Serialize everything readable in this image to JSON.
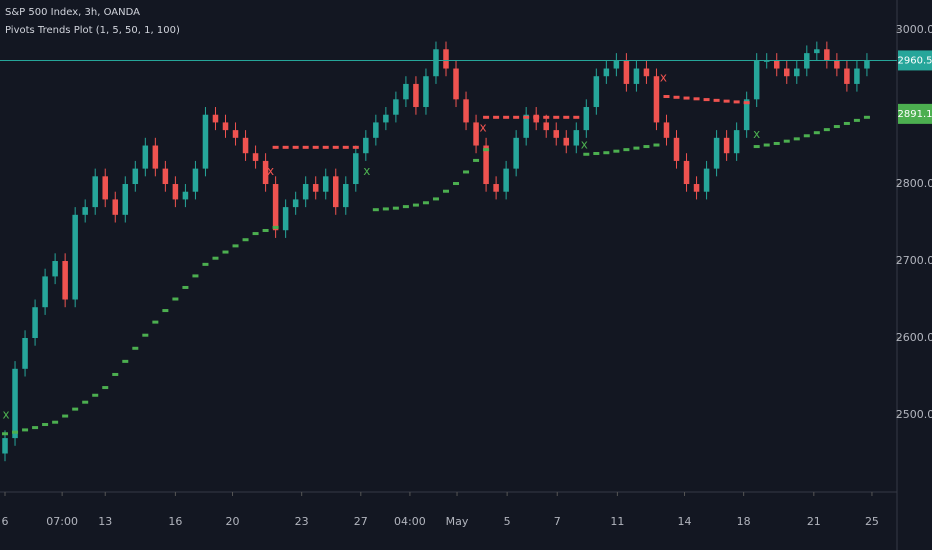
{
  "chart_data": {
    "type": "candlestick",
    "title": "S&P 500 Index, 3h, OANDA",
    "subtitle": "Pivots Trends Plot (1, 5, 50, 1, 100)",
    "up_color": "#26a69a",
    "down_color": "#ef5350",
    "open": [
      2450,
      2470,
      2560,
      2600,
      2640,
      2680,
      2700,
      2650,
      2760,
      2770,
      2810,
      2780,
      2760,
      2800,
      2820,
      2850,
      2820,
      2800,
      2780,
      2790,
      2820,
      2890,
      2880,
      2870,
      2860,
      2840,
      2830,
      2800,
      2740,
      2770,
      2780,
      2800,
      2790,
      2810,
      2770,
      2800,
      2840,
      2860,
      2880,
      2890,
      2910,
      2930,
      2900,
      2940,
      2975,
      2950,
      2910,
      2880,
      2850,
      2800,
      2790,
      2820,
      2860,
      2890,
      2880,
      2870,
      2860,
      2850,
      2870,
      2900,
      2940,
      2950,
      2960,
      2930,
      2950,
      2940,
      2880,
      2860,
      2830,
      2800,
      2790,
      2820,
      2860,
      2840,
      2870,
      2910,
      2960,
      2960,
      2950,
      2940,
      2950,
      2970,
      2975,
      2960,
      2950,
      2930,
      2950
    ],
    "high": [
      2480,
      2570,
      2610,
      2650,
      2690,
      2710,
      2710,
      2770,
      2780,
      2820,
      2820,
      2790,
      2810,
      2830,
      2860,
      2860,
      2830,
      2810,
      2800,
      2830,
      2900,
      2900,
      2890,
      2880,
      2870,
      2850,
      2840,
      2810,
      2780,
      2790,
      2810,
      2810,
      2820,
      2820,
      2810,
      2850,
      2870,
      2890,
      2900,
      2920,
      2940,
      2940,
      2950,
      2985,
      2985,
      2960,
      2920,
      2890,
      2860,
      2810,
      2830,
      2870,
      2900,
      2900,
      2890,
      2880,
      2870,
      2880,
      2910,
      2950,
      2960,
      2970,
      2970,
      2960,
      2960,
      2950,
      2890,
      2870,
      2840,
      2810,
      2830,
      2870,
      2870,
      2880,
      2920,
      2970,
      2970,
      2970,
      2960,
      2960,
      2980,
      2985,
      2985,
      2970,
      2960,
      2960,
      2970
    ],
    "low": [
      2440,
      2460,
      2550,
      2590,
      2630,
      2670,
      2640,
      2640,
      2750,
      2760,
      2770,
      2750,
      2750,
      2790,
      2810,
      2810,
      2790,
      2770,
      2770,
      2780,
      2810,
      2870,
      2860,
      2850,
      2830,
      2820,
      2790,
      2730,
      2730,
      2760,
      2770,
      2780,
      2780,
      2760,
      2760,
      2790,
      2830,
      2850,
      2870,
      2880,
      2900,
      2890,
      2890,
      2930,
      2940,
      2900,
      2870,
      2840,
      2790,
      2780,
      2780,
      2810,
      2850,
      2870,
      2860,
      2850,
      2840,
      2840,
      2860,
      2890,
      2930,
      2940,
      2920,
      2920,
      2930,
      2870,
      2850,
      2820,
      2790,
      2780,
      2780,
      2810,
      2830,
      2830,
      2860,
      2900,
      2950,
      2940,
      2930,
      2930,
      2940,
      2960,
      2950,
      2940,
      2920,
      2920,
      2940
    ],
    "close": [
      2470,
      2560,
      2600,
      2640,
      2680,
      2700,
      2650,
      2760,
      2770,
      2810,
      2780,
      2760,
      2800,
      2820,
      2850,
      2820,
      2800,
      2780,
      2790,
      2820,
      2890,
      2880,
      2870,
      2860,
      2840,
      2830,
      2800,
      2740,
      2770,
      2780,
      2800,
      2790,
      2810,
      2770,
      2800,
      2840,
      2860,
      2880,
      2890,
      2910,
      2930,
      2900,
      2940,
      2975,
      2950,
      2910,
      2880,
      2850,
      2800,
      2790,
      2820,
      2860,
      2890,
      2880,
      2870,
      2860,
      2850,
      2870,
      2900,
      2940,
      2950,
      2960,
      2930,
      2950,
      2940,
      2880,
      2860,
      2830,
      2800,
      2790,
      2820,
      2860,
      2840,
      2870,
      2910,
      2960,
      2960,
      2950,
      2940,
      2950,
      2970,
      2975,
      2960,
      2950,
      2930,
      2950,
      2960
    ],
    "series": [
      {
        "color": "#4caf50",
        "values": [
          2475,
          2477,
          2480,
          2483,
          2487,
          2490,
          2498,
          2507,
          2516,
          2525,
          2535,
          2552,
          2569,
          2586,
          2603,
          2620,
          2635,
          2650,
          2665,
          2680,
          2695,
          2703,
          2711,
          2719,
          2727,
          2735,
          2739,
          2743,
          null,
          null,
          null,
          null,
          null,
          null,
          null,
          null,
          null,
          2766,
          2767,
          2768,
          2770,
          2772,
          2775,
          2780,
          2790,
          2800,
          2815,
          2830,
          2844,
          null,
          null,
          null,
          null,
          null,
          null,
          null,
          null,
          null,
          2838,
          2839,
          2840,
          2842,
          2844,
          2846,
          2848,
          2850,
          null,
          null,
          null,
          null,
          null,
          null,
          null,
          null,
          null,
          2848,
          2850,
          2852,
          2855,
          2858,
          2862,
          2866,
          2870,
          2874,
          2878,
          2882,
          2886
        ]
      },
      {
        "color": "#ef5350",
        "values": [
          null,
          null,
          null,
          null,
          null,
          null,
          null,
          null,
          null,
          null,
          null,
          null,
          null,
          null,
          null,
          null,
          null,
          null,
          null,
          null,
          null,
          null,
          null,
          null,
          null,
          null,
          null,
          2847,
          2847,
          2847,
          2847,
          2847,
          2847,
          2847,
          2847,
          2847,
          null,
          null,
          null,
          null,
          null,
          null,
          null,
          null,
          null,
          null,
          null,
          null,
          2886,
          2886,
          2886,
          2886,
          2886,
          2886,
          2886,
          2886,
          2886,
          2886,
          null,
          null,
          null,
          null,
          null,
          null,
          null,
          null,
          2913,
          2912,
          2911,
          2910,
          2909,
          2908,
          2907,
          2906,
          2905,
          null,
          null,
          null,
          null,
          null,
          null,
          null,
          null,
          null,
          null,
          null,
          null
        ]
      }
    ],
    "markers": [
      {
        "label": "x",
        "color": "#ef5350",
        "x": 26.5,
        "value": 2816
      },
      {
        "label": "x",
        "color": "#ef5350",
        "x": 47.7,
        "value": 2873
      },
      {
        "label": "x",
        "color": "#ef5350",
        "x": 65.7,
        "value": 2938
      },
      {
        "label": "x",
        "color": "#4caf50",
        "x": 0.1,
        "value": 2500
      },
      {
        "label": "x",
        "color": "#4caf50",
        "x": 36.1,
        "value": 2816
      },
      {
        "label": "x",
        "color": "#4caf50",
        "x": 57.8,
        "value": 2851
      },
      {
        "label": "x",
        "color": "#4caf50",
        "x": 75.0,
        "value": 2864
      }
    ],
    "price_labels": [
      {
        "value": 2960.5,
        "label": "2960.5",
        "color": "#26a69a",
        "line": true
      },
      {
        "value": 2891.1,
        "label": "2891.1",
        "color": "#4caf50",
        "line": false
      }
    ],
    "xlim": [
      -0.5,
      89
    ],
    "ylim": [
      2400,
      3039
    ],
    "yticks": [
      {
        "value": 2500,
        "label": "2500.0"
      },
      {
        "value": 2600,
        "label": "2600.0"
      },
      {
        "value": 2700,
        "label": "2700.0"
      },
      {
        "value": 2800,
        "label": "2800.0"
      },
      {
        "value": 3000,
        "label": "3000.0"
      }
    ],
    "xticks": [
      {
        "value": 0,
        "label": "6"
      },
      {
        "value": 5.7,
        "label": "07:00"
      },
      {
        "value": 10,
        "label": "13"
      },
      {
        "value": 17,
        "label": "16"
      },
      {
        "value": 22.7,
        "label": "20"
      },
      {
        "value": 29.6,
        "label": "23"
      },
      {
        "value": 35.5,
        "label": "27"
      },
      {
        "value": 40.4,
        "label": "04:00"
      },
      {
        "value": 45.1,
        "label": "May"
      },
      {
        "value": 50.1,
        "label": "5"
      },
      {
        "value": 55.1,
        "label": "7"
      },
      {
        "value": 61.1,
        "label": "11"
      },
      {
        "value": 67.8,
        "label": "14"
      },
      {
        "value": 73.7,
        "label": "18"
      },
      {
        "value": 80.7,
        "label": "21"
      },
      {
        "value": 86.5,
        "label": "25"
      }
    ]
  }
}
